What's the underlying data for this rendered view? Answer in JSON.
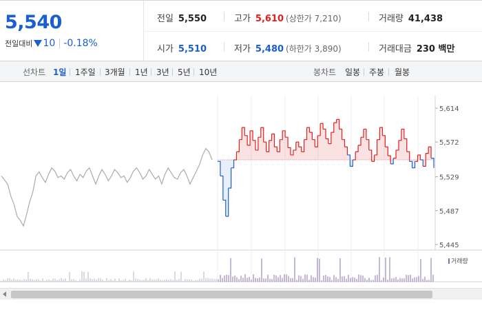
{
  "price": {
    "current": "5,540",
    "change_label": "전일대비",
    "change_amount": "10",
    "change_rate": "-0.18%"
  },
  "stats": {
    "prev_label": "전일",
    "prev_value": "5,550",
    "high_label": "고가",
    "high_value": "5,610",
    "upper_limit": "(상한가 7,210)",
    "volume_label": "거래량",
    "volume_value": "41,438",
    "open_label": "시가",
    "open_value": "5,510",
    "low_label": "저가",
    "low_value": "5,480",
    "lower_limit": "(하한가 3,890)",
    "amount_label": "거래대금",
    "amount_value": "230 백만"
  },
  "tabs": {
    "line_label": "선차트",
    "line_periods": [
      "1일",
      "1주일",
      "3개월",
      "1년",
      "3년",
      "5년",
      "10년"
    ],
    "active": "1일",
    "candle_label": "봉차트",
    "candle_periods": [
      "일봉",
      "주봉",
      "월봉"
    ]
  },
  "colors": {
    "up": "#e02020",
    "down": "#1a5fd0",
    "prev_line": "#aaaaaa",
    "volume": "#8a6fb0"
  },
  "chart_data": {
    "type": "line",
    "ylim": [
      5445,
      5614
    ],
    "y_ticks": [
      "5,614",
      "5,572",
      "5,529",
      "5,487",
      "5,445"
    ],
    "y_tick_values": [
      5614,
      5572,
      5529,
      5487,
      5445
    ],
    "baseline": 5550,
    "volume_legend": "거래량",
    "prev_day_series": [
      5530,
      5525,
      5520,
      5505,
      5495,
      5480,
      5475,
      5468,
      5482,
      5498,
      5510,
      5530,
      5535,
      5528,
      5522,
      5532,
      5540,
      5536,
      5528,
      5530,
      5526,
      5534,
      5538,
      5530,
      5524,
      5532,
      5528,
      5536,
      5540,
      5530,
      5520,
      5530,
      5538,
      5532,
      5524,
      5530,
      5538,
      5534,
      5528,
      5530,
      5522,
      5528,
      5536,
      5540,
      5534,
      5526,
      5530,
      5538,
      5532,
      5526,
      5530,
      5520,
      5532,
      5540,
      5534,
      5528,
      5526,
      5534,
      5538,
      5530,
      5520,
      5528,
      5536,
      5544,
      5556,
      5564,
      5560,
      5550
    ],
    "today_series": [
      5548,
      5530,
      5500,
      5480,
      5515,
      5540,
      5550,
      5560,
      5575,
      5590,
      5580,
      5568,
      5586,
      5574,
      5562,
      5578,
      5590,
      5572,
      5560,
      5574,
      5582,
      5566,
      5560,
      5575,
      5586,
      5578,
      5565,
      5556,
      5562,
      5572,
      5566,
      5560,
      5575,
      5590,
      5584,
      5575,
      5566,
      5580,
      5595,
      5588,
      5576,
      5570,
      5584,
      5596,
      5600,
      5588,
      5575,
      5566,
      5556,
      5542,
      5550,
      5560,
      5568,
      5578,
      5588,
      5575,
      5562,
      5548,
      5556,
      5575,
      5590,
      5580,
      5566,
      5555,
      5545,
      5552,
      5562,
      5574,
      5588,
      5576,
      5560,
      5548,
      5540,
      5548,
      5556,
      5550,
      5542,
      5558,
      5566,
      5552,
      5540
    ]
  }
}
